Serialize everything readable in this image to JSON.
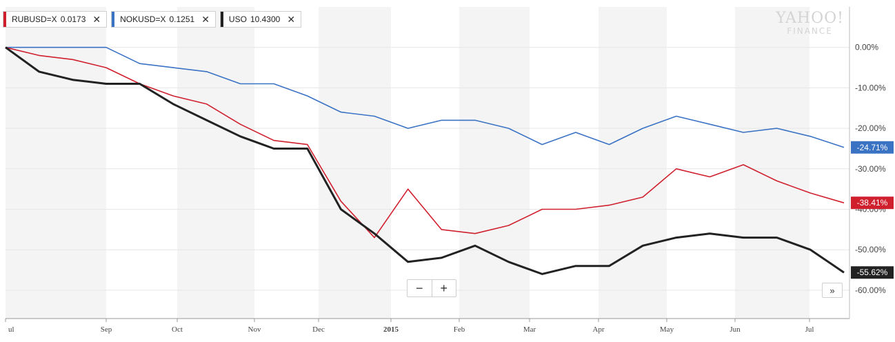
{
  "legend": [
    {
      "symbol": "RUBUSD=X",
      "value": "0.0173",
      "color": "#d0202e",
      "close": "✕"
    },
    {
      "symbol": "NOKUSD=X",
      "value": "0.1251",
      "color": "#3a72c4",
      "close": "✕"
    },
    {
      "symbol": "USO",
      "value": "10.4300",
      "color": "#222222",
      "close": "✕"
    }
  ],
  "logo": {
    "line1": "YAHOO!",
    "line2": "FINANCE"
  },
  "controls": {
    "zoom_out": "−",
    "zoom_in": "+",
    "expand": "»"
  },
  "chart_data": {
    "type": "line",
    "x_tick_labels": [
      "ul",
      "Sep",
      "Oct",
      "Nov",
      "Dec",
      "2015",
      "Feb",
      "Mar",
      "Apr",
      "May",
      "Jun",
      "Jul"
    ],
    "y_tick_labels": [
      "0.00%",
      "-10.00%",
      "-20.00%",
      "-30.00%",
      "-40.00%",
      "-50.00%",
      "-60.00%"
    ],
    "y_ticks": [
      0,
      -10,
      -20,
      -30,
      -40,
      -50,
      -60
    ],
    "ylim": [
      -67,
      10
    ],
    "grid": true,
    "x_positions": [
      0,
      0.45,
      0.9,
      1.35,
      1.8,
      2.25,
      2.7,
      3.15,
      3.6,
      4.05,
      4.5,
      4.95,
      5.4,
      5.85,
      6.3,
      6.75,
      7.2,
      7.65,
      8.1,
      8.55,
      9.0,
      9.45,
      9.9,
      10.35,
      10.8,
      11.25
    ],
    "series": [
      {
        "name": "RUBUSD=X",
        "color": "#d0202e",
        "end_label": "-38.41%",
        "values": [
          0,
          -2,
          -3,
          -5,
          -9,
          -12,
          -14,
          -19,
          -23,
          -24,
          -38,
          -47,
          -35,
          -45,
          -46,
          -44,
          -40,
          -40,
          -39,
          -37,
          -30,
          -32,
          -29,
          -33,
          -36,
          -38.41
        ]
      },
      {
        "name": "NOKUSD=X",
        "color": "#3a72c4",
        "end_label": "-24.71%",
        "values": [
          0,
          0,
          0,
          0,
          -4,
          -5,
          -6,
          -9,
          -9,
          -12,
          -16,
          -17,
          -20,
          -18,
          -18,
          -20,
          -24,
          -21,
          -24,
          -20,
          -17,
          -19,
          -21,
          -20,
          -22,
          -24.71
        ]
      },
      {
        "name": "USO",
        "color": "#222222",
        "end_label": "-55.62%",
        "values": [
          0,
          -6,
          -8,
          -9,
          -9,
          -14,
          -18,
          -22,
          -25,
          -25,
          -40,
          -46,
          -53,
          -52,
          -49,
          -53,
          -56,
          -54,
          -54,
          -49,
          -47,
          -46,
          -47,
          -47,
          -50,
          -55.62
        ]
      }
    ]
  }
}
